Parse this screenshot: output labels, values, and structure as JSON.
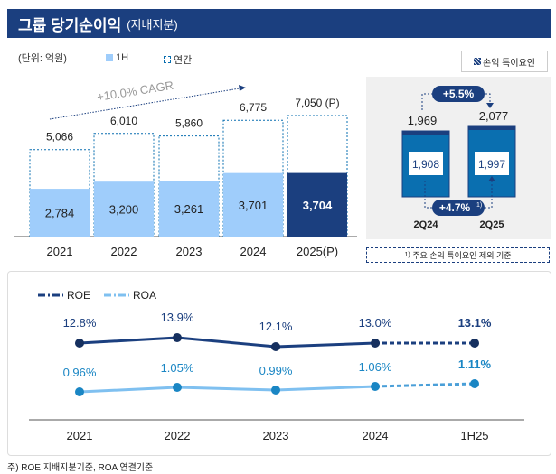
{
  "header": {
    "title": "그룹 당기순이익",
    "subtitle": "(지배지분)"
  },
  "unit": "(단위: 억원)",
  "legend": {
    "h1": "1H",
    "annual": "연간",
    "special": "손익 특이요인"
  },
  "colors": {
    "header": "#1b3f7f",
    "h1": "#9fcdfb",
    "proj": "#1b3f7f",
    "quarter": "#0a6fb0",
    "roe": "#1b3f7f",
    "roa": "#7fc0f0"
  },
  "chart_data": [
    {
      "type": "bar",
      "title": "",
      "categories": [
        "2021",
        "2022",
        "2023",
        "2024",
        "2025(P)"
      ],
      "series": [
        {
          "name": "1H",
          "values": [
            2784,
            3200,
            3261,
            3701,
            3704
          ]
        },
        {
          "name": "연간",
          "values": [
            5066,
            6010,
            5860,
            6775,
            7050
          ]
        }
      ],
      "annual_labels": [
        "5,066",
        "6,010",
        "5,860",
        "6,775",
        "7,050 (P)"
      ],
      "h1_labels": [
        "2,784",
        "3,200",
        "3,261",
        "3,701",
        "3,704"
      ],
      "annotation": "+10.0% CAGR"
    },
    {
      "type": "bar",
      "categories": [
        "2Q24",
        "2Q25"
      ],
      "total": [
        1969,
        2077
      ],
      "excl_special": [
        1908,
        1997
      ],
      "total_labels": [
        "1,969",
        "2,077"
      ],
      "excl_labels": [
        "1,908",
        "1,997"
      ],
      "growth_total": "+5.5%",
      "growth_excl": "+4.7%",
      "growth_excl_sup": "1)",
      "note": "주요 손익 특이요인 제외 기준",
      "note_sup": "1)"
    },
    {
      "type": "line",
      "categories": [
        "2021",
        "2022",
        "2023",
        "2024",
        "1H25"
      ],
      "series": [
        {
          "name": "ROE",
          "values": [
            12.8,
            13.9,
            12.1,
            13.0,
            13.1
          ],
          "labels": [
            "12.8%",
            "13.9%",
            "12.1%",
            "13.0%",
            "13.1%"
          ]
        },
        {
          "name": "ROA",
          "values": [
            0.96,
            1.05,
            0.99,
            1.06,
            1.11
          ],
          "labels": [
            "0.96%",
            "1.05%",
            "0.99%",
            "1.06%",
            "1.11%"
          ]
        }
      ]
    }
  ],
  "footnote": "주) ROE 지배지분기준, ROA 연결기준"
}
